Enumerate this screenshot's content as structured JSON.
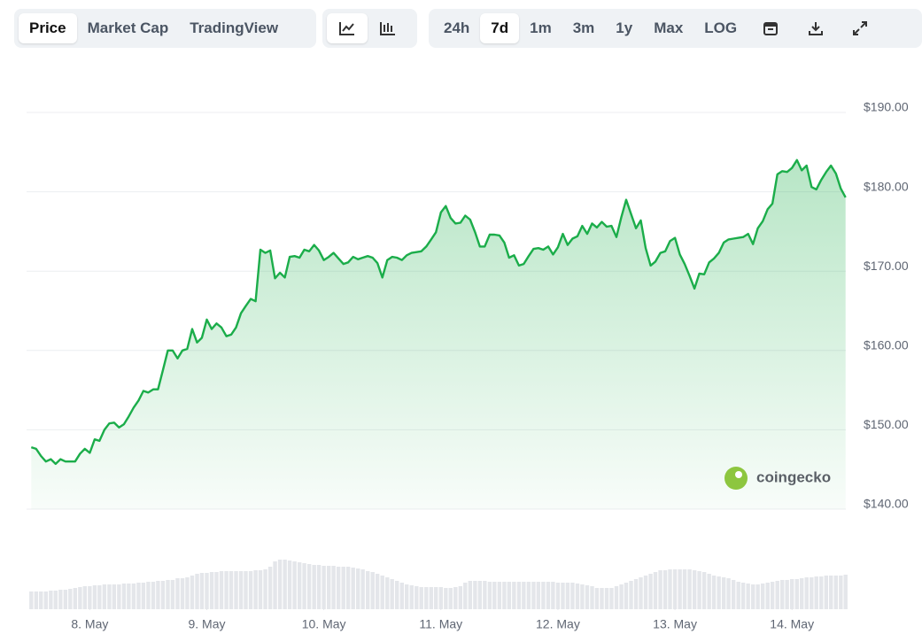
{
  "toolbar": {
    "views": [
      "Price",
      "Market Cap",
      "TradingView"
    ],
    "ranges": [
      "24h",
      "7d",
      "1m",
      "3m",
      "1y",
      "Max",
      "LOG"
    ]
  },
  "watermark": "coingecko",
  "chart_data": {
    "type": "line",
    "color": "#1bad4a",
    "grid": true,
    "x": [
      7.5,
      7.542,
      7.583,
      7.625,
      7.667,
      7.708,
      7.75,
      7.792,
      7.833,
      7.875,
      7.917,
      7.958,
      8,
      8.042,
      8.083,
      8.125,
      8.167,
      8.208,
      8.25,
      8.292,
      8.333,
      8.375,
      8.417,
      8.458,
      8.5,
      8.542,
      8.583,
      8.625,
      8.667,
      8.708,
      8.75,
      8.792,
      8.833,
      8.875,
      8.917,
      8.958,
      9,
      9.042,
      9.083,
      9.125,
      9.167,
      9.208,
      9.25,
      9.292,
      9.333,
      9.375,
      9.417,
      9.458,
      9.5,
      9.542,
      9.583,
      9.625,
      9.667,
      9.708,
      9.75,
      9.792,
      9.833,
      9.875,
      9.917,
      9.958,
      10,
      10.042,
      10.083,
      10.125,
      10.167,
      10.208,
      10.25,
      10.292,
      10.333,
      10.375,
      10.417,
      10.458,
      10.5,
      10.542,
      10.583,
      10.625,
      10.667,
      10.708,
      10.75,
      10.792,
      10.833,
      10.875,
      10.917,
      10.958,
      11,
      11.042,
      11.083,
      11.125,
      11.167,
      11.208,
      11.25,
      11.292,
      11.333,
      11.375,
      11.417,
      11.458,
      11.5,
      11.542,
      11.583,
      11.625,
      11.667,
      11.708,
      11.75,
      11.792,
      11.833,
      11.875,
      11.917,
      11.958,
      12,
      12.042,
      12.083,
      12.125,
      12.167,
      12.208,
      12.25,
      12.292,
      12.333,
      12.375,
      12.417,
      12.458,
      12.5,
      12.542,
      12.583,
      12.625,
      12.667,
      12.708,
      12.75,
      12.792,
      12.833,
      12.875,
      12.917,
      12.958,
      13,
      13.042,
      13.083,
      13.125,
      13.167,
      13.208,
      13.25,
      13.292,
      13.333,
      13.375,
      13.417,
      13.458,
      13.5,
      13.542,
      13.583,
      13.625,
      13.667,
      13.708,
      13.75,
      13.792,
      13.833,
      13.875,
      13.917,
      13.958,
      14,
      14.042,
      14.083,
      14.125,
      14.167,
      14.208,
      14.25,
      14.292,
      14.333,
      14.375,
      14.417,
      14.458
    ],
    "values": [
      147.8,
      147.6,
      146.7,
      146.0,
      146.3,
      145.7,
      146.3,
      146.0,
      146.0,
      146.0,
      147.0,
      147.6,
      147.1,
      148.8,
      148.6,
      150.0,
      150.8,
      150.9,
      150.3,
      150.7,
      151.7,
      152.8,
      153.7,
      154.9,
      154.7,
      155.1,
      155.1,
      157.5,
      160.0,
      160.0,
      159.0,
      160.0,
      160.2,
      162.7,
      161.0,
      161.6,
      163.9,
      162.7,
      163.4,
      162.9,
      161.8,
      162.0,
      162.9,
      164.7,
      165.6,
      166.5,
      166.2,
      172.7,
      172.3,
      172.6,
      169.1,
      169.8,
      169.2,
      171.8,
      171.9,
      171.7,
      172.7,
      172.5,
      173.3,
      172.6,
      171.4,
      171.8,
      172.3,
      171.6,
      170.9,
      171.1,
      171.8,
      171.5,
      171.7,
      171.9,
      171.7,
      171.0,
      169.2,
      171.4,
      171.8,
      171.7,
      171.4,
      172.0,
      172.3,
      172.4,
      172.5,
      173.1,
      174.0,
      174.9,
      177.4,
      178.2,
      176.7,
      176.0,
      176.1,
      177.0,
      176.5,
      174.9,
      173.1,
      173.1,
      174.6,
      174.6,
      174.5,
      173.6,
      171.7,
      172.0,
      170.7,
      170.9,
      171.9,
      172.8,
      172.9,
      172.7,
      173.1,
      172.1,
      173.0,
      174.7,
      173.3,
      174.1,
      174.4,
      175.7,
      174.7,
      176.0,
      175.5,
      176.2,
      175.6,
      175.7,
      174.3,
      176.8,
      179.0,
      177.2,
      175.4,
      176.4,
      172.9,
      170.7,
      171.2,
      172.3,
      172.5,
      173.8,
      174.2,
      172.1,
      170.9,
      169.4,
      167.8,
      169.7,
      169.6,
      171.1,
      171.6,
      172.3,
      173.6,
      174.0,
      174.1,
      174.2,
      174.3,
      174.7,
      173.4,
      175.4,
      176.3,
      177.8,
      178.5,
      182.2,
      182.6,
      182.5,
      183.0,
      184.0,
      182.7,
      183.3,
      180.6,
      180.3,
      181.5,
      182.5,
      183.3,
      182.3,
      180.4,
      179.3
    ],
    "xlim": [
      7.46,
      14.46
    ],
    "xticks": [
      {
        "value": 8,
        "label": "8. May"
      },
      {
        "value": 9,
        "label": "9. May"
      },
      {
        "value": 10,
        "label": "10. May"
      },
      {
        "value": 11,
        "label": "11. May"
      },
      {
        "value": 12,
        "label": "12. May"
      },
      {
        "value": 13,
        "label": "13. May"
      },
      {
        "value": 14,
        "label": "14. May"
      }
    ],
    "ylim": [
      140,
      190
    ],
    "yticks": [
      {
        "value": 140,
        "label": "$140.00"
      },
      {
        "value": 150,
        "label": "$150.00"
      },
      {
        "value": 160,
        "label": "$160.00"
      },
      {
        "value": 170,
        "label": "$170.00"
      },
      {
        "value": 180,
        "label": "$180.00"
      },
      {
        "value": 190,
        "label": "$190.00"
      }
    ],
    "volume": {
      "color": "#e4e6ea",
      "lim": [
        0,
        100
      ],
      "values": [
        20,
        20,
        20,
        20,
        21,
        21,
        22,
        22,
        23,
        24,
        25,
        26,
        26,
        27,
        27,
        28,
        28,
        28,
        28,
        29,
        29,
        29,
        30,
        30,
        31,
        31,
        32,
        32,
        33,
        33,
        35,
        35,
        36,
        38,
        40,
        41,
        41,
        42,
        42,
        43,
        43,
        43,
        43,
        43,
        43,
        43,
        44,
        44,
        45,
        48,
        54,
        56,
        56,
        55,
        54,
        53,
        52,
        51,
        50,
        50,
        49,
        49,
        49,
        48,
        48,
        48,
        47,
        46,
        45,
        43,
        42,
        40,
        38,
        36,
        34,
        32,
        30,
        28,
        27,
        26,
        25,
        25,
        25,
        25,
        25,
        24,
        24,
        25,
        26,
        30,
        32,
        32,
        32,
        32,
        31,
        31,
        31,
        31,
        31,
        31,
        31,
        31,
        31,
        31,
        31,
        31,
        31,
        31,
        30,
        30,
        30,
        30,
        29,
        28,
        27,
        26,
        24,
        24,
        24,
        24,
        26,
        28,
        30,
        32,
        34,
        36,
        38,
        40,
        42,
        44,
        44,
        45,
        45,
        45,
        45,
        45,
        44,
        43,
        42,
        40,
        38,
        37,
        36,
        35,
        33,
        31,
        30,
        29,
        28,
        28,
        29,
        30,
        31,
        32,
        33,
        33,
        34,
        34,
        35,
        36,
        36,
        37,
        37,
        38,
        38,
        38,
        38,
        39
      ]
    }
  }
}
